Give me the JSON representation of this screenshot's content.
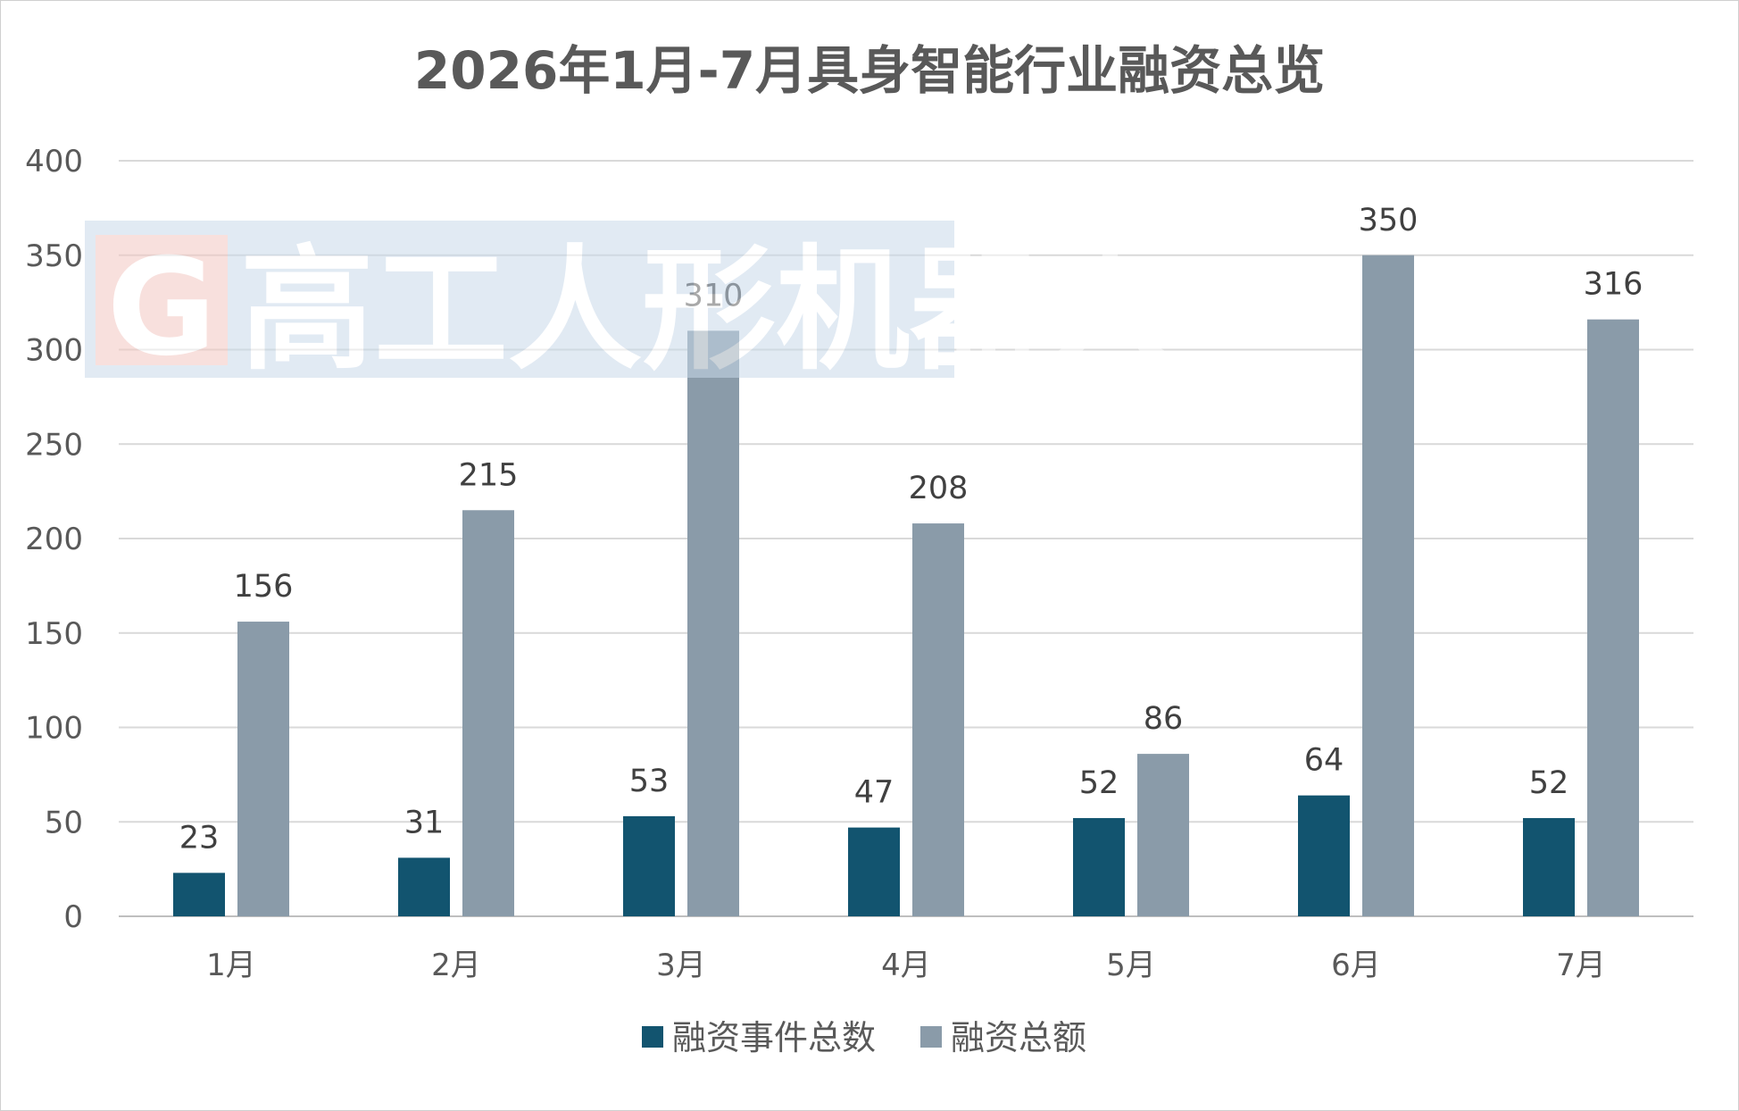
{
  "chart_data": {
    "type": "bar",
    "title": "2026年1月-7月具身智能行业融资总览",
    "categories": [
      "1月",
      "2月",
      "3月",
      "4月",
      "5月",
      "6月",
      "7月"
    ],
    "series": [
      {
        "name": "融资事件总数",
        "values": [
          23,
          31,
          53,
          47,
          52,
          64,
          52
        ],
        "color": "#12546f"
      },
      {
        "name": "融资总额",
        "values": [
          156,
          215,
          310,
          208,
          86,
          350,
          316
        ],
        "color": "#8a9ba9"
      }
    ],
    "ylim": [
      0,
      400
    ],
    "yticks": [
      0,
      50,
      100,
      150,
      200,
      250,
      300,
      350,
      400
    ],
    "grid": true,
    "legend_position": "bottom"
  },
  "watermark": {
    "logo_letter": "G",
    "text": "高工人形机器人"
  }
}
